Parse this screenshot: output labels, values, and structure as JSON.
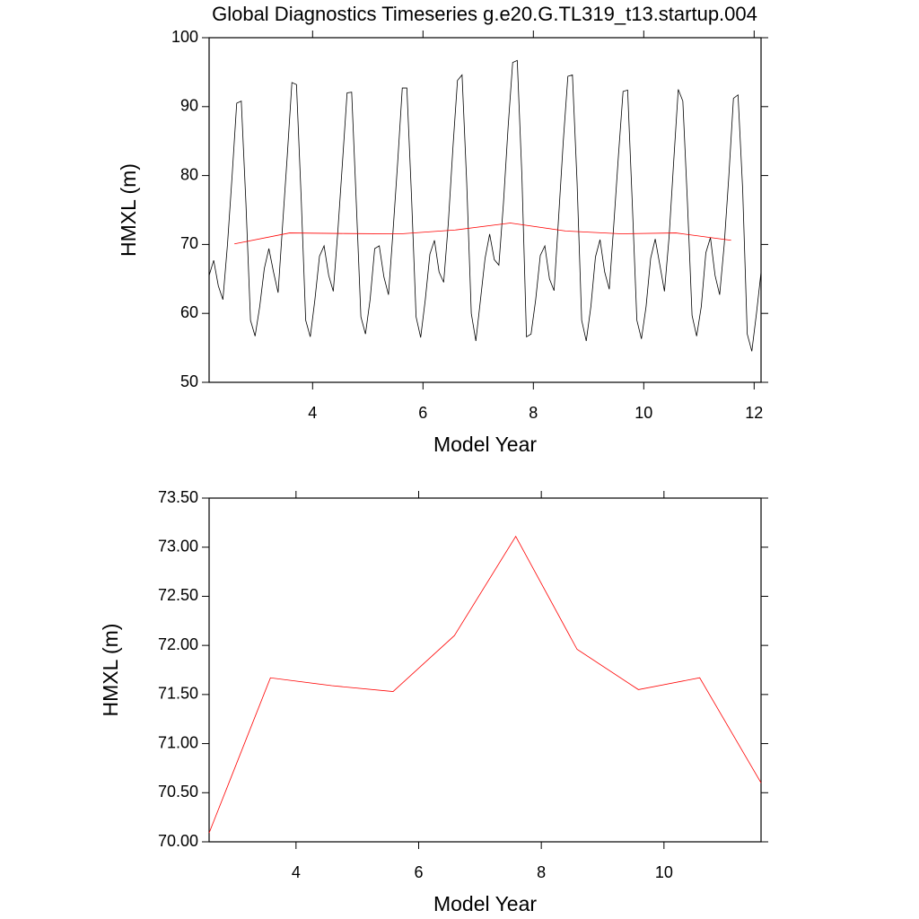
{
  "chart_data": [
    {
      "type": "line",
      "title": "Global Diagnostics Timeseries g.e20.G.TL319_t13.startup.004",
      "x_label": "Model Year",
      "y_label": "HMXL (m)",
      "xlim": [
        2.125,
        12.125
      ],
      "xticks": [
        4,
        6,
        8,
        10,
        12
      ],
      "ylim": [
        50,
        100
      ],
      "yticks": [
        50,
        60,
        70,
        80,
        90,
        100
      ],
      "series": [
        {
          "color": "#000000",
          "x": [
            2.125,
            2.208,
            2.292,
            2.375,
            2.458,
            2.542,
            2.625,
            2.708,
            2.792,
            2.875,
            2.958,
            3.042,
            3.125,
            3.208,
            3.292,
            3.375,
            3.458,
            3.542,
            3.625,
            3.708,
            3.792,
            3.875,
            3.958,
            4.042,
            4.125,
            4.208,
            4.292,
            4.375,
            4.458,
            4.542,
            4.625,
            4.708,
            4.792,
            4.875,
            4.958,
            5.042,
            5.125,
            5.208,
            5.292,
            5.375,
            5.458,
            5.542,
            5.625,
            5.708,
            5.792,
            5.875,
            5.958,
            6.042,
            6.125,
            6.208,
            6.292,
            6.375,
            6.458,
            6.542,
            6.625,
            6.708,
            6.792,
            6.875,
            6.958,
            7.042,
            7.125,
            7.208,
            7.292,
            7.375,
            7.458,
            7.542,
            7.625,
            7.708,
            7.792,
            7.875,
            7.958,
            8.042,
            8.125,
            8.208,
            8.292,
            8.375,
            8.458,
            8.542,
            8.625,
            8.708,
            8.792,
            8.875,
            8.958,
            9.042,
            9.125,
            9.208,
            9.292,
            9.375,
            9.458,
            9.542,
            9.625,
            9.708,
            9.792,
            9.875,
            9.958,
            10.042,
            10.125,
            10.208,
            10.292,
            10.375,
            10.458,
            10.542,
            10.625,
            10.708,
            10.792,
            10.875,
            10.958,
            11.042,
            11.125,
            11.208,
            11.292,
            11.375,
            11.458,
            11.542,
            11.625,
            11.708,
            11.792,
            11.875,
            11.958,
            12.042,
            12.125
          ],
          "values": [
            65.5,
            67.7,
            64,
            62,
            70,
            80,
            90.5,
            90.8,
            76,
            59,
            56.7,
            61,
            66.5,
            69.4,
            66,
            63,
            73,
            83,
            93.5,
            93.2,
            77,
            59,
            56.6,
            62,
            68.3,
            69.8,
            65.5,
            63.2,
            72,
            82,
            92,
            92.1,
            76,
            59.5,
            57,
            62,
            69.4,
            69.8,
            65.3,
            62.7,
            72,
            82,
            92.7,
            92.7,
            77,
            59.5,
            56.5,
            62,
            68.6,
            70.6,
            66,
            64.5,
            73,
            84,
            93.8,
            94.6,
            79,
            60,
            56,
            62,
            68,
            71.5,
            67.8,
            67,
            76,
            87,
            96.4,
            96.7,
            80,
            56.6,
            57,
            62,
            68.4,
            69.8,
            65,
            63.3,
            74,
            85,
            94.4,
            94.6,
            79,
            59,
            56,
            61,
            68.2,
            70.7,
            66,
            63.5,
            73,
            83,
            92.2,
            92.4,
            76,
            59,
            56.3,
            61,
            68,
            70.8,
            67,
            63.2,
            71,
            82,
            92.5,
            90.8,
            76,
            59.7,
            56.7,
            61,
            68.8,
            71,
            65.5,
            62.7,
            70,
            80,
            91.2,
            91.7,
            78,
            57,
            54.5,
            60,
            66
          ]
        },
        {
          "color": "#ff0000",
          "x": [
            2.583,
            3.583,
            4.583,
            5.583,
            6.583,
            7.583,
            8.583,
            9.583,
            10.583,
            11.583
          ],
          "values": [
            70.09,
            71.67,
            71.59,
            71.53,
            72.1,
            73.11,
            71.96,
            71.55,
            71.67,
            70.6
          ]
        }
      ]
    },
    {
      "type": "line",
      "x_label": "Model Year",
      "y_label": "HMXL (m)",
      "xlim": [
        2.583,
        11.583
      ],
      "xticks": [
        4,
        6,
        8,
        10
      ],
      "ylim": [
        70,
        73.5
      ],
      "yticks": [
        {
          "value": 70,
          "label": "70.00"
        },
        {
          "value": 70.5,
          "label": "70.50"
        },
        {
          "value": 71,
          "label": "71.00"
        },
        {
          "value": 71.5,
          "label": "71.50"
        },
        {
          "value": 72,
          "label": "72.00"
        },
        {
          "value": 72.5,
          "label": "72.50"
        },
        {
          "value": 73,
          "label": "73.00"
        },
        {
          "value": 73.5,
          "label": "73.50"
        }
      ],
      "series": [
        {
          "color": "#ff0000",
          "x": [
            2.583,
            3.583,
            4.583,
            5.583,
            6.583,
            7.583,
            8.583,
            9.583,
            10.583,
            11.583
          ],
          "values": [
            70.09,
            71.67,
            71.59,
            71.53,
            72.1,
            73.11,
            71.96,
            71.55,
            71.67,
            70.6
          ]
        }
      ]
    }
  ]
}
